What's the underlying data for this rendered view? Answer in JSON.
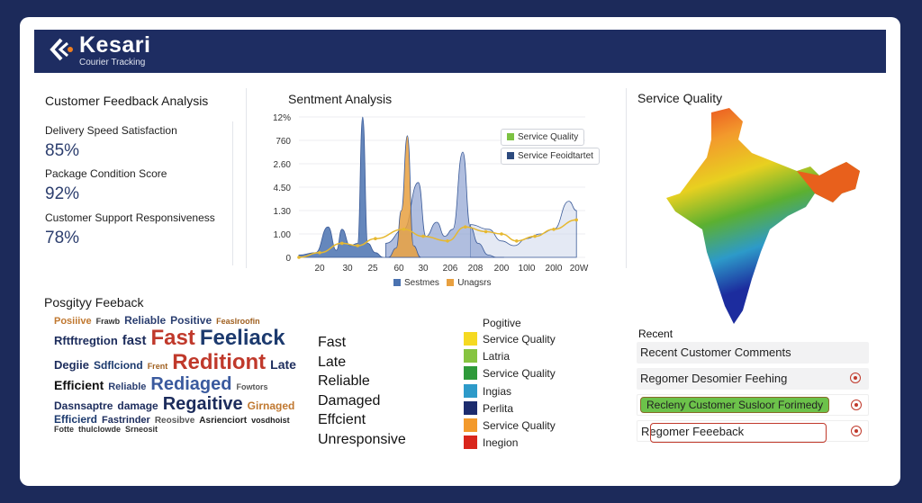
{
  "header": {
    "brand": "Kesari",
    "subtitle": "Courier Tracking"
  },
  "feedback": {
    "title": "Customer Feedback Analysis",
    "metrics": [
      {
        "label": "Delivery Speed Satisfaction",
        "value": "85%"
      },
      {
        "label": "Package Condition Score",
        "value": "92%"
      },
      {
        "label": "Customer Support Responsiveness",
        "value": "78%"
      }
    ]
  },
  "chart_data": {
    "type": "area",
    "title": "Sentment Analysis",
    "y_tick_labels": [
      "0",
      "1.00",
      "1.30",
      "4.50",
      "2.60",
      "760",
      "12%"
    ],
    "x_tick_labels": [
      "20",
      "30",
      "25",
      "60",
      "30",
      "206",
      "208",
      "200",
      "10l0",
      "20l0",
      "20W"
    ],
    "grid": true,
    "legend_top": [
      {
        "name": "Service Quality",
        "color": "#7cc242"
      },
      {
        "name": "Service Feoidtartet",
        "color": "#2c4a7e"
      }
    ],
    "legend_bottom": [
      {
        "name": "Sestmes",
        "color": "#4a72b0"
      },
      {
        "name": "Unagsrs",
        "color": "#e8a040"
      }
    ],
    "series": [
      {
        "name": "Sestmes",
        "color": "#4a72b0",
        "x": [
          0,
          0.8,
          1.3,
          1.6,
          1.8,
          2.1,
          2.4,
          2.6,
          2.8,
          3.1,
          3.4,
          3.6,
          3.9,
          4.2,
          4.5
        ],
        "y": [
          0.1,
          0.2,
          1.3,
          0.3,
          1.2,
          0.5,
          0.6,
          6,
          0.6,
          0.2,
          0,
          0,
          0,
          0,
          0
        ]
      },
      {
        "name": "Unagsrs",
        "color": "#e8a040",
        "x": [
          3.6,
          3.9,
          4.1,
          4.35,
          4.6,
          4.9
        ],
        "y": [
          0,
          0.4,
          2,
          5.2,
          0.5,
          0
        ]
      },
      {
        "name": "",
        "color": "#8ea3d2",
        "x": [
          3.5,
          4.2,
          4.8,
          5.1,
          5.5,
          5.8,
          6.1,
          6.5,
          6.8,
          7.1,
          7.5,
          7.8,
          8.1
        ],
        "y": [
          0.6,
          1.2,
          3.2,
          0.9,
          1.5,
          0.9,
          1.2,
          4.5,
          1.3,
          0.6,
          0.1,
          0,
          0
        ],
        "fill": 0.7
      },
      {
        "name": "",
        "color": "#c9d3ea",
        "x": [
          6.8,
          7.5,
          8,
          8.5,
          9,
          9.5,
          10,
          10.6,
          10.9
        ],
        "y": [
          1.4,
          1.2,
          0.7,
          0.5,
          0.8,
          1,
          1.2,
          2.4,
          2.0
        ],
        "fill": 0.5
      }
    ],
    "line": {
      "color": "#e6b830",
      "x": [
        0,
        1,
        1.8,
        2.4,
        3.1,
        4.2,
        5,
        5.9,
        6.6,
        7.4,
        8,
        8.6,
        9.3,
        10,
        10.9
      ],
      "y": [
        0,
        0.2,
        0.6,
        0.5,
        0.8,
        1.2,
        0.9,
        0.7,
        1.3,
        1.1,
        1.0,
        0.7,
        0.9,
        1.2,
        1.6
      ]
    }
  },
  "service_quality": {
    "title": "Service Quality"
  },
  "wordcloud": {
    "title": "Posgityy Feeback",
    "words": [
      "Posiiive",
      "Frawb",
      "Reliable",
      "Positive",
      "Feaslroofin",
      "Rftftregtion",
      "fast",
      "Fast",
      "Feeliack",
      "Degiie",
      "Sdflciond",
      "Frent",
      "Reditiont",
      "Late",
      "Efficient",
      "Reliable",
      "Rediaged",
      "Fowtors",
      "Dasnsaptre",
      "damage",
      "Regaitive",
      "Girnaged",
      "Efficierd",
      "Fastrinder",
      "Reosibve",
      "Asrienciort",
      "vosdhoist",
      "Fotte",
      "thulclowde",
      "Srneosit"
    ]
  },
  "tags": [
    "Fast",
    "Late",
    "Reliable",
    "Damaged",
    "Effcient",
    "Unresponsive"
  ],
  "categories": {
    "heading": "Pogitive",
    "items": [
      {
        "label": "Service Quality",
        "color": "#f5d921"
      },
      {
        "label": "Latria",
        "color": "#86c440"
      },
      {
        "label": "Service Quality",
        "color": "#2e9a3a"
      },
      {
        "label": "Ingias",
        "color": "#2d9ac9"
      },
      {
        "label": "Perlita",
        "color": "#1c2c6e"
      },
      {
        "label": "Service Quality",
        "color": "#f39a2c"
      },
      {
        "label": "Inegion",
        "color": "#d9261c"
      }
    ]
  },
  "recent": {
    "title": "Recent",
    "items": [
      "Recent Customer Comments",
      "Regomer Desomier Feehing",
      "Recleny Customer Susloor Forimedy",
      "Regomer Feeeback"
    ]
  }
}
